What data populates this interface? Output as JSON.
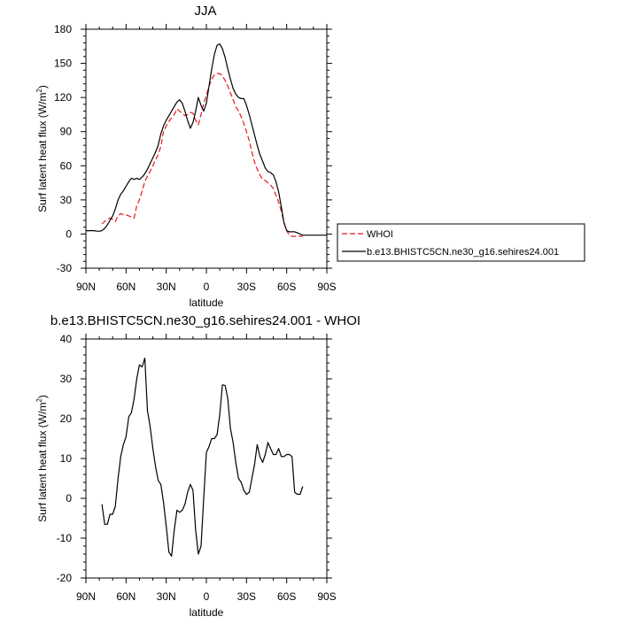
{
  "chart_data": [
    {
      "type": "line",
      "title": "JJA",
      "xlabel": "latitude",
      "ylabel": "Surf latent heat flux (W/m²)",
      "ylabel_main": "Surf latent heat flux (W/m",
      "ylabel_sup": "2",
      "ylabel_end": ")",
      "xlim": [
        90,
        -90
      ],
      "ylim": [
        -30,
        180
      ],
      "xticks": [
        90,
        60,
        30,
        0,
        -30,
        -60,
        -90
      ],
      "xtick_labels": [
        "90N",
        "60N",
        "30N",
        "0",
        "30S",
        "60S",
        "90S"
      ],
      "yticks": [
        -30,
        0,
        30,
        60,
        90,
        120,
        150,
        180
      ],
      "ytick_labels": [
        "-30",
        "0",
        "30",
        "60",
        "90",
        "120",
        "150",
        "180"
      ],
      "legend_position": "right",
      "grid": false,
      "series": [
        {
          "name": "WHOI",
          "color": "#e8161b",
          "dash": "dashed",
          "x": [
            78,
            76,
            74,
            72,
            70,
            68,
            66,
            64,
            62,
            60,
            58,
            56,
            54,
            52,
            50,
            48,
            46,
            44,
            42,
            40,
            38,
            36,
            34,
            32,
            30,
            28,
            26,
            24,
            22,
            20,
            18,
            16,
            14,
            12,
            10,
            8,
            6,
            4,
            2,
            0,
            -2,
            -4,
            -6,
            -8,
            -10,
            -12,
            -14,
            -16,
            -18,
            -20,
            -22,
            -24,
            -26,
            -28,
            -30,
            -32,
            -34,
            -36,
            -38,
            -40,
            -42,
            -44,
            -46,
            -48,
            -50,
            -52,
            -54,
            -56,
            -58,
            -60,
            -62,
            -64,
            -66,
            -68,
            -70,
            -72
          ],
          "y": [
            9,
            11,
            13,
            14,
            13,
            11,
            16,
            18,
            17,
            17,
            16,
            15,
            14,
            25,
            30,
            38,
            46,
            51,
            55,
            60,
            65,
            70,
            77,
            90,
            95,
            99,
            102,
            105,
            110,
            108,
            106,
            104,
            105,
            107,
            106,
            100,
            96,
            105,
            115,
            122,
            130,
            136,
            140,
            141,
            141,
            139,
            135,
            130,
            124,
            118,
            112,
            108,
            103,
            97,
            90,
            82,
            72,
            63,
            57,
            52,
            48,
            47,
            45,
            43,
            40,
            34,
            28,
            20,
            10,
            3,
            -1,
            -2,
            -2,
            -2,
            -2,
            -2
          ]
        },
        {
          "name": "b.e13.BHISTC5CN.ne30_g16.sehires24.001",
          "color": "#000000",
          "dash": "solid",
          "x": [
            90,
            88,
            86,
            84,
            82,
            80,
            78,
            76,
            74,
            72,
            70,
            68,
            66,
            64,
            62,
            60,
            58,
            56,
            54,
            52,
            50,
            48,
            46,
            44,
            42,
            40,
            38,
            36,
            34,
            32,
            30,
            28,
            26,
            24,
            22,
            20,
            18,
            16,
            14,
            12,
            10,
            8,
            6,
            4,
            2,
            0,
            -2,
            -4,
            -6,
            -8,
            -10,
            -12,
            -14,
            -16,
            -18,
            -20,
            -22,
            -24,
            -26,
            -28,
            -30,
            -32,
            -34,
            -36,
            -38,
            -40,
            -42,
            -44,
            -46,
            -48,
            -50,
            -52,
            -54,
            -56,
            -58,
            -60,
            -62,
            -64,
            -66,
            -68,
            -70,
            -72,
            -74,
            -76,
            -78,
            -80,
            -82,
            -84,
            -86,
            -88,
            -90
          ],
          "y": [
            3,
            3,
            3,
            3,
            2.5,
            2.5,
            3,
            5,
            8,
            12,
            16,
            22,
            30,
            35,
            38,
            42,
            46,
            49,
            48,
            49,
            48,
            50,
            53,
            57,
            62,
            67,
            72,
            78,
            88,
            95,
            100,
            104,
            108,
            112,
            116,
            118,
            115,
            108,
            100,
            93,
            98,
            108,
            120,
            113,
            108,
            115,
            130,
            145,
            158,
            166,
            167,
            163,
            155,
            145,
            136,
            128,
            123,
            120,
            119,
            119,
            113,
            105,
            96,
            87,
            78,
            70,
            64,
            58,
            55,
            54,
            52,
            46,
            37,
            24,
            10,
            3,
            2,
            2,
            2,
            1,
            0,
            -1,
            -1,
            -1,
            -1,
            -1,
            -1,
            -1,
            -1,
            -1,
            -1
          ]
        }
      ]
    },
    {
      "type": "line",
      "title": "b.e13.BHISTC5CN.ne30_g16.sehires24.001 - WHOI",
      "xlabel": "latitude",
      "ylabel": "Surf latent heat flux (W/m²)",
      "ylabel_main": "Surf latent heat flux (W/m",
      "ylabel_sup": "2",
      "ylabel_end": ")",
      "xlim": [
        90,
        -90
      ],
      "ylim": [
        -20,
        40
      ],
      "xticks": [
        90,
        60,
        30,
        0,
        -30,
        -60,
        -90
      ],
      "xtick_labels": [
        "90N",
        "60N",
        "30N",
        "0",
        "30S",
        "60S",
        "90S"
      ],
      "yticks": [
        -20,
        -10,
        0,
        10,
        20,
        30,
        40
      ],
      "ytick_labels": [
        "-20",
        "-10",
        "0",
        "10",
        "20",
        "30",
        "40"
      ],
      "grid": false,
      "series": [
        {
          "color": "#000000",
          "dash": "solid",
          "x": [
            78,
            76,
            74,
            72,
            70,
            68,
            66,
            64,
            62,
            60,
            58,
            56,
            54,
            52,
            50,
            48,
            46,
            44,
            42,
            40,
            38,
            36,
            34,
            32,
            30,
            28,
            26,
            24,
            22,
            20,
            18,
            16,
            14,
            12,
            10,
            8,
            6,
            4,
            2,
            0,
            -2,
            -4,
            -6,
            -8,
            -10,
            -12,
            -14,
            -16,
            -18,
            -20,
            -22,
            -24,
            -26,
            -28,
            -30,
            -32,
            -34,
            -36,
            -38,
            -40,
            -42,
            -44,
            -46,
            -48,
            -50,
            -52,
            -54,
            -56,
            -58,
            -60,
            -62,
            -64,
            -66,
            -68,
            -70,
            -72
          ],
          "y": [
            -1.5,
            -6.5,
            -6.5,
            -4,
            -4,
            -2,
            5,
            10.5,
            13.5,
            15.5,
            20.5,
            21.5,
            25,
            30,
            33.5,
            33,
            35.2,
            22,
            18,
            12.5,
            8,
            4.5,
            3.5,
            -1,
            -7,
            -13.5,
            -14.5,
            -8,
            -3,
            -3.5,
            -3,
            -1.5,
            1.5,
            3.5,
            2,
            -8,
            -14,
            -12,
            0,
            11.5,
            13,
            15,
            15,
            16,
            21,
            28.5,
            28.3,
            25,
            17.5,
            14,
            9,
            5,
            4,
            2,
            1,
            1.5,
            5,
            8.5,
            13.5,
            10.5,
            9,
            11,
            14,
            12.5,
            11,
            11,
            12.5,
            10.5,
            10.5,
            11,
            11,
            10.5,
            1.5,
            1,
            1,
            3
          ]
        }
      ]
    }
  ]
}
